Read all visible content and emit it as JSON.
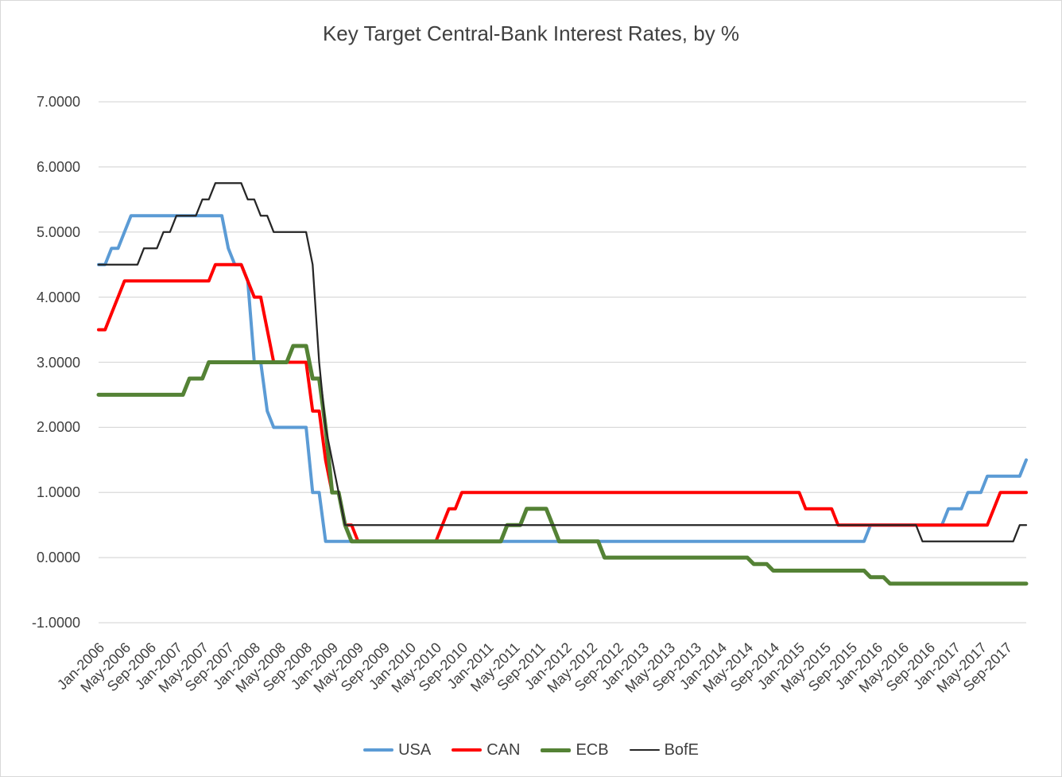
{
  "title": "Key Target Central-Bank Interest Rates, by %",
  "colors": {
    "background": "#FFFFFF",
    "border": "#D9D9D9",
    "gridline": "#D9D9D9",
    "text": "#404040"
  },
  "chart_data": {
    "type": "line",
    "title": "Key Target Central-Bank Interest Rates, by %",
    "xlabel": "",
    "ylabel": "",
    "ylim": [
      -1,
      7
    ],
    "grid": "horizontal",
    "legend_position": "bottom",
    "x_unit": "month",
    "x_range": [
      "Jan-2006",
      "Dec-2017"
    ],
    "x_tick_step_months": 4,
    "x_tick_labels": [
      "Jan-2006",
      "May-2006",
      "Sep-2006",
      "Jan-2007",
      "May-2007",
      "Sep-2007",
      "Jan-2008",
      "May-2008",
      "Sep-2008",
      "Jan-2009",
      "May-2009",
      "Sep-2009",
      "Jan-2010",
      "May-2010",
      "Sep-2010",
      "Jan-2011",
      "May-2011",
      "Sep-2011",
      "Jan-2012",
      "May-2012",
      "Sep-2012",
      "Jan-2013",
      "May-2013",
      "Sep-2013",
      "Jan-2014",
      "May-2014",
      "Sep-2014",
      "Jan-2015",
      "May-2015",
      "Sep-2015",
      "Jan-2016",
      "May-2016",
      "Sep-2016",
      "Jan-2017",
      "May-2017",
      "Sep-2017"
    ],
    "y_tick_labels": [
      "7.0000",
      "6.0000",
      "5.0000",
      "4.0000",
      "3.0000",
      "2.0000",
      "1.0000",
      "0.0000",
      "-1.0000"
    ],
    "y_tick_values": [
      7,
      6,
      5,
      4,
      3,
      2,
      1,
      0,
      -1
    ],
    "series": [
      {
        "name": "USA",
        "color": "#5B9BD5",
        "line_width": 4,
        "values": [
          4.5,
          4.5,
          4.75,
          4.75,
          5,
          5.25,
          5.25,
          5.25,
          5.25,
          5.25,
          5.25,
          5.25,
          5.25,
          5.25,
          5.25,
          5.25,
          5.25,
          5.25,
          5.25,
          5.25,
          4.75,
          4.5,
          4.5,
          4.25,
          3,
          3,
          2.25,
          2,
          2,
          2,
          2,
          2,
          2,
          1,
          1,
          0.25,
          0.25,
          0.25,
          0.25,
          0.25,
          0.25,
          0.25,
          0.25,
          0.25,
          0.25,
          0.25,
          0.25,
          0.25,
          0.25,
          0.25,
          0.25,
          0.25,
          0.25,
          0.25,
          0.25,
          0.25,
          0.25,
          0.25,
          0.25,
          0.25,
          0.25,
          0.25,
          0.25,
          0.25,
          0.25,
          0.25,
          0.25,
          0.25,
          0.25,
          0.25,
          0.25,
          0.25,
          0.25,
          0.25,
          0.25,
          0.25,
          0.25,
          0.25,
          0.25,
          0.25,
          0.25,
          0.25,
          0.25,
          0.25,
          0.25,
          0.25,
          0.25,
          0.25,
          0.25,
          0.25,
          0.25,
          0.25,
          0.25,
          0.25,
          0.25,
          0.25,
          0.25,
          0.25,
          0.25,
          0.25,
          0.25,
          0.25,
          0.25,
          0.25,
          0.25,
          0.25,
          0.25,
          0.25,
          0.25,
          0.25,
          0.25,
          0.25,
          0.25,
          0.25,
          0.25,
          0.25,
          0.25,
          0.25,
          0.25,
          0.5,
          0.5,
          0.5,
          0.5,
          0.5,
          0.5,
          0.5,
          0.5,
          0.5,
          0.5,
          0.5,
          0.5,
          0.75,
          0.75,
          0.75,
          1,
          1,
          1,
          1.25,
          1.25,
          1.25,
          1.25,
          1.25,
          1.25,
          1.5
        ]
      },
      {
        "name": "CAN",
        "color": "#FF0000",
        "line_width": 4,
        "values": [
          3.5,
          3.5,
          3.75,
          4,
          4.25,
          4.25,
          4.25,
          4.25,
          4.25,
          4.25,
          4.25,
          4.25,
          4.25,
          4.25,
          4.25,
          4.25,
          4.25,
          4.25,
          4.5,
          4.5,
          4.5,
          4.5,
          4.5,
          4.25,
          4,
          4,
          3.5,
          3,
          3,
          3,
          3,
          3,
          3,
          2.25,
          2.25,
          1.5,
          1,
          1,
          0.5,
          0.5,
          0.25,
          0.25,
          0.25,
          0.25,
          0.25,
          0.25,
          0.25,
          0.25,
          0.25,
          0.25,
          0.25,
          0.25,
          0.25,
          0.5,
          0.75,
          0.75,
          1,
          1,
          1,
          1,
          1,
          1,
          1,
          1,
          1,
          1,
          1,
          1,
          1,
          1,
          1,
          1,
          1,
          1,
          1,
          1,
          1,
          1,
          1,
          1,
          1,
          1,
          1,
          1,
          1,
          1,
          1,
          1,
          1,
          1,
          1,
          1,
          1,
          1,
          1,
          1,
          1,
          1,
          1,
          1,
          1,
          1,
          1,
          1,
          1,
          1,
          1,
          1,
          1,
          0.75,
          0.75,
          0.75,
          0.75,
          0.75,
          0.5,
          0.5,
          0.5,
          0.5,
          0.5,
          0.5,
          0.5,
          0.5,
          0.5,
          0.5,
          0.5,
          0.5,
          0.5,
          0.5,
          0.5,
          0.5,
          0.5,
          0.5,
          0.5,
          0.5,
          0.5,
          0.5,
          0.5,
          0.5,
          0.75,
          1,
          1,
          1,
          1,
          1
        ]
      },
      {
        "name": "ECB",
        "color": "#548235",
        "line_width": 5,
        "values": [
          2.5,
          2.5,
          2.5,
          2.5,
          2.5,
          2.5,
          2.5,
          2.5,
          2.5,
          2.5,
          2.5,
          2.5,
          2.5,
          2.5,
          2.75,
          2.75,
          2.75,
          3,
          3,
          3,
          3,
          3,
          3,
          3,
          3,
          3,
          3,
          3,
          3,
          3,
          3.25,
          3.25,
          3.25,
          2.75,
          2.75,
          2,
          1,
          1,
          0.5,
          0.25,
          0.25,
          0.25,
          0.25,
          0.25,
          0.25,
          0.25,
          0.25,
          0.25,
          0.25,
          0.25,
          0.25,
          0.25,
          0.25,
          0.25,
          0.25,
          0.25,
          0.25,
          0.25,
          0.25,
          0.25,
          0.25,
          0.25,
          0.25,
          0.5,
          0.5,
          0.5,
          0.75,
          0.75,
          0.75,
          0.75,
          0.5,
          0.25,
          0.25,
          0.25,
          0.25,
          0.25,
          0.25,
          0.25,
          0,
          0,
          0,
          0,
          0,
          0,
          0,
          0,
          0,
          0,
          0,
          0,
          0,
          0,
          0,
          0,
          0,
          0,
          0,
          0,
          0,
          0,
          0,
          -0.1,
          -0.1,
          -0.1,
          -0.2,
          -0.2,
          -0.2,
          -0.2,
          -0.2,
          -0.2,
          -0.2,
          -0.2,
          -0.2,
          -0.2,
          -0.2,
          -0.2,
          -0.2,
          -0.2,
          -0.2,
          -0.3,
          -0.3,
          -0.3,
          -0.4,
          -0.4,
          -0.4,
          -0.4,
          -0.4,
          -0.4,
          -0.4,
          -0.4,
          -0.4,
          -0.4,
          -0.4,
          -0.4,
          -0.4,
          -0.4,
          -0.4,
          -0.4,
          -0.4,
          -0.4,
          -0.4,
          -0.4,
          -0.4,
          -0.4
        ]
      },
      {
        "name": "BofE",
        "color": "#262626",
        "line_width": 2.25,
        "values": [
          4.5,
          4.5,
          4.5,
          4.5,
          4.5,
          4.5,
          4.5,
          4.75,
          4.75,
          4.75,
          5,
          5,
          5.25,
          5.25,
          5.25,
          5.25,
          5.5,
          5.5,
          5.75,
          5.75,
          5.75,
          5.75,
          5.75,
          5.5,
          5.5,
          5.25,
          5.25,
          5,
          5,
          5,
          5,
          5,
          5,
          4.5,
          3,
          2,
          1.5,
          1,
          0.5,
          0.5,
          0.5,
          0.5,
          0.5,
          0.5,
          0.5,
          0.5,
          0.5,
          0.5,
          0.5,
          0.5,
          0.5,
          0.5,
          0.5,
          0.5,
          0.5,
          0.5,
          0.5,
          0.5,
          0.5,
          0.5,
          0.5,
          0.5,
          0.5,
          0.5,
          0.5,
          0.5,
          0.5,
          0.5,
          0.5,
          0.5,
          0.5,
          0.5,
          0.5,
          0.5,
          0.5,
          0.5,
          0.5,
          0.5,
          0.5,
          0.5,
          0.5,
          0.5,
          0.5,
          0.5,
          0.5,
          0.5,
          0.5,
          0.5,
          0.5,
          0.5,
          0.5,
          0.5,
          0.5,
          0.5,
          0.5,
          0.5,
          0.5,
          0.5,
          0.5,
          0.5,
          0.5,
          0.5,
          0.5,
          0.5,
          0.5,
          0.5,
          0.5,
          0.5,
          0.5,
          0.5,
          0.5,
          0.5,
          0.5,
          0.5,
          0.5,
          0.5,
          0.5,
          0.5,
          0.5,
          0.5,
          0.5,
          0.5,
          0.5,
          0.5,
          0.5,
          0.5,
          0.5,
          0.25,
          0.25,
          0.25,
          0.25,
          0.25,
          0.25,
          0.25,
          0.25,
          0.25,
          0.25,
          0.25,
          0.25,
          0.25,
          0.25,
          0.25,
          0.5,
          0.5
        ]
      }
    ]
  }
}
